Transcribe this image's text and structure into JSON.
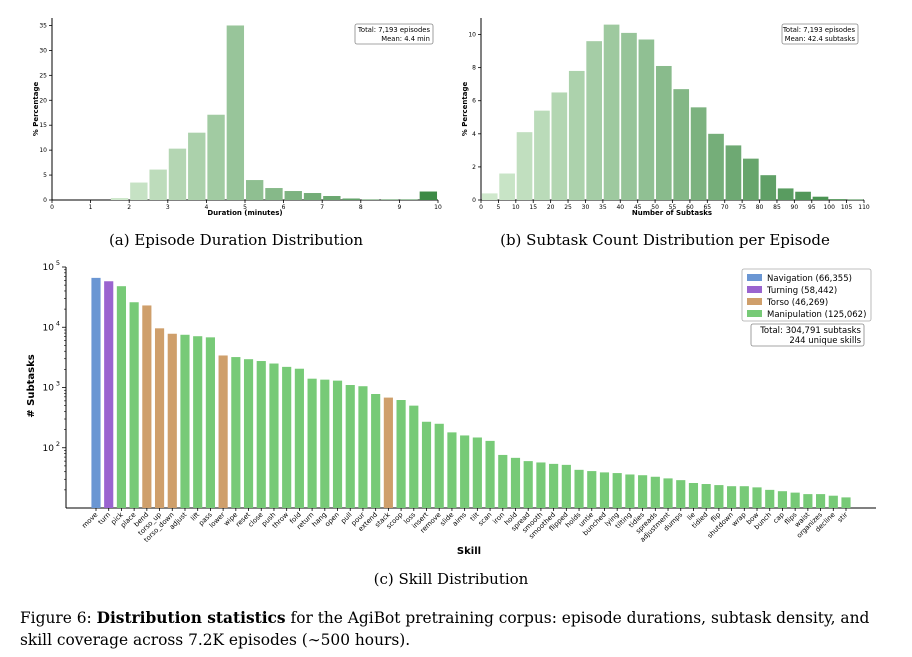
{
  "chart_data": [
    {
      "type": "bar",
      "panel": "a",
      "title": "(a) Episode Duration Distribution",
      "xlabel": "Duration (minutes)",
      "ylabel": "% Percentage",
      "xlim": [
        0,
        10
      ],
      "ylim": [
        0,
        36.5
      ],
      "xticks": [
        0,
        1,
        2,
        3,
        4,
        5,
        6,
        7,
        8,
        9,
        10
      ],
      "yticks": [
        0,
        5,
        10,
        15,
        20,
        25,
        30,
        35
      ],
      "bin_width": 0.5,
      "bin_starts": [
        1.5,
        2.0,
        2.5,
        3.0,
        3.5,
        4.0,
        4.5,
        5.0,
        5.5,
        6.0,
        6.5,
        7.0,
        7.5,
        8.0,
        8.5,
        9.0,
        9.5
      ],
      "values": [
        0.4,
        3.5,
        6.1,
        10.3,
        13.5,
        17.1,
        35.0,
        4.0,
        2.4,
        1.8,
        1.4,
        0.8,
        0.3,
        0.1,
        0.1,
        0.1,
        1.7
      ],
      "annotation": [
        "Total: 7,193 episodes",
        "Mean: 4.4 min"
      ]
    },
    {
      "type": "bar",
      "panel": "b",
      "title": "(b) Subtask Count Distribution per Episode",
      "xlabel": "Number of Subtasks",
      "ylabel": "% Percentage",
      "xlim": [
        0,
        110
      ],
      "ylim": [
        0,
        11
      ],
      "xticks": [
        0,
        5,
        10,
        15,
        20,
        25,
        30,
        35,
        40,
        45,
        50,
        55,
        60,
        65,
        70,
        75,
        80,
        85,
        90,
        95,
        100,
        105,
        110
      ],
      "yticks": [
        0,
        2,
        4,
        6,
        8,
        10
      ],
      "bin_width": 5,
      "bin_starts": [
        0,
        5,
        10,
        15,
        20,
        25,
        30,
        35,
        40,
        45,
        50,
        55,
        60,
        65,
        70,
        75,
        80,
        85,
        90,
        95,
        100,
        105
      ],
      "values": [
        0.4,
        1.6,
        4.1,
        5.4,
        6.5,
        7.8,
        9.6,
        10.6,
        10.1,
        9.7,
        8.1,
        6.7,
        5.6,
        4.0,
        3.3,
        2.5,
        1.5,
        0.7,
        0.5,
        0.2,
        0.05,
        0.03
      ],
      "annotation": [
        "Total: 7,193 episodes",
        "Mean: 42.4 subtasks"
      ]
    },
    {
      "type": "bar",
      "panel": "c",
      "title": "(c) Skill Distribution",
      "xlabel": "Skill",
      "ylabel": "# Subtasks",
      "yscale": "log",
      "ylim": [
        10,
        100000
      ],
      "ytick_labels": [
        {
          "base": "10",
          "exp": "2",
          "value": 100
        },
        {
          "base": "10",
          "exp": "3",
          "value": 1000
        },
        {
          "base": "10",
          "exp": "4",
          "value": 10000
        },
        {
          "base": "10",
          "exp": "5",
          "value": 100000
        }
      ],
      "legend": [
        {
          "key": "nav",
          "label": "Navigation (66,355)",
          "color": "#6a96d3"
        },
        {
          "key": "turn",
          "label": "Turning (58,442)",
          "color": "#9a64cf"
        },
        {
          "key": "torso",
          "label": "Torso (46,269)",
          "color": "#cf9f6b"
        },
        {
          "key": "manip",
          "label": "Manipulation (125,062)",
          "color": "#77ca77"
        }
      ],
      "totals": [
        "Total: 304,791 subtasks",
        "244 unique skills"
      ],
      "skills": [
        {
          "label": "move",
          "value": 66000,
          "cat": "nav"
        },
        {
          "label": "turn",
          "value": 58000,
          "cat": "turn"
        },
        {
          "label": "pick",
          "value": 48000,
          "cat": "manip"
        },
        {
          "label": "place",
          "value": 26000,
          "cat": "manip"
        },
        {
          "label": "bend",
          "value": 23000,
          "cat": "torso"
        },
        {
          "label": "torso_up",
          "value": 9600,
          "cat": "torso"
        },
        {
          "label": "torso_down",
          "value": 7800,
          "cat": "torso"
        },
        {
          "label": "adjust",
          "value": 7500,
          "cat": "manip"
        },
        {
          "label": "lift",
          "value": 7100,
          "cat": "manip"
        },
        {
          "label": "pass",
          "value": 6800,
          "cat": "manip"
        },
        {
          "label": "lower",
          "value": 3400,
          "cat": "torso"
        },
        {
          "label": "wipe",
          "value": 3200,
          "cat": "manip"
        },
        {
          "label": "reset",
          "value": 2950,
          "cat": "manip"
        },
        {
          "label": "close",
          "value": 2750,
          "cat": "manip"
        },
        {
          "label": "push",
          "value": 2500,
          "cat": "manip"
        },
        {
          "label": "throw",
          "value": 2200,
          "cat": "manip"
        },
        {
          "label": "fold",
          "value": 2050,
          "cat": "manip"
        },
        {
          "label": "return",
          "value": 1400,
          "cat": "manip"
        },
        {
          "label": "hang",
          "value": 1350,
          "cat": "manip"
        },
        {
          "label": "open",
          "value": 1300,
          "cat": "manip"
        },
        {
          "label": "pull",
          "value": 1100,
          "cat": "manip"
        },
        {
          "label": "pour",
          "value": 1050,
          "cat": "manip"
        },
        {
          "label": "extend",
          "value": 780,
          "cat": "manip"
        },
        {
          "label": "stack",
          "value": 680,
          "cat": "torso"
        },
        {
          "label": "scoop",
          "value": 620,
          "cat": "manip"
        },
        {
          "label": "loss",
          "value": 500,
          "cat": "manip"
        },
        {
          "label": "insert",
          "value": 270,
          "cat": "manip"
        },
        {
          "label": "remove",
          "value": 250,
          "cat": "manip"
        },
        {
          "label": "slide",
          "value": 180,
          "cat": "manip"
        },
        {
          "label": "aims",
          "value": 160,
          "cat": "manip"
        },
        {
          "label": "tilt",
          "value": 148,
          "cat": "manip"
        },
        {
          "label": "scan",
          "value": 130,
          "cat": "manip"
        },
        {
          "label": "iron",
          "value": 76,
          "cat": "manip"
        },
        {
          "label": "hold",
          "value": 68,
          "cat": "manip"
        },
        {
          "label": "spread",
          "value": 60,
          "cat": "manip"
        },
        {
          "label": "smooth",
          "value": 57,
          "cat": "manip"
        },
        {
          "label": "smoothed",
          "value": 54,
          "cat": "manip"
        },
        {
          "label": "flipped",
          "value": 52,
          "cat": "manip"
        },
        {
          "label": "holds",
          "value": 43,
          "cat": "manip"
        },
        {
          "label": "untie",
          "value": 41,
          "cat": "manip"
        },
        {
          "label": "bunched",
          "value": 39,
          "cat": "manip"
        },
        {
          "label": "lying",
          "value": 38,
          "cat": "manip"
        },
        {
          "label": "tilting",
          "value": 36,
          "cat": "manip"
        },
        {
          "label": "tidies",
          "value": 35,
          "cat": "manip"
        },
        {
          "label": "spreads",
          "value": 33,
          "cat": "manip"
        },
        {
          "label": "adjustment",
          "value": 31,
          "cat": "manip"
        },
        {
          "label": "dumps",
          "value": 29,
          "cat": "manip"
        },
        {
          "label": "lie",
          "value": 26,
          "cat": "manip"
        },
        {
          "label": "tidied",
          "value": 25,
          "cat": "manip"
        },
        {
          "label": "flip",
          "value": 24,
          "cat": "manip"
        },
        {
          "label": "shutdown",
          "value": 23,
          "cat": "manip"
        },
        {
          "label": "wrap",
          "value": 23,
          "cat": "manip"
        },
        {
          "label": "bow",
          "value": 22,
          "cat": "manip"
        },
        {
          "label": "bunch",
          "value": 20,
          "cat": "manip"
        },
        {
          "label": "cap",
          "value": 19,
          "cat": "manip"
        },
        {
          "label": "flips",
          "value": 18,
          "cat": "manip"
        },
        {
          "label": "waist",
          "value": 17,
          "cat": "manip"
        },
        {
          "label": "organizes",
          "value": 17,
          "cat": "manip"
        },
        {
          "label": "decline",
          "value": 16,
          "cat": "manip"
        },
        {
          "label": "stir",
          "value": 15,
          "cat": "manip"
        }
      ]
    }
  ],
  "caption": {
    "prefix": "Figure 6: ",
    "bold": "Distribution statistics",
    "rest": " for the AgiBot pretraining corpus: episode durations, subtask density, and skill coverage across 7.2K episodes (∼500 hours)."
  }
}
